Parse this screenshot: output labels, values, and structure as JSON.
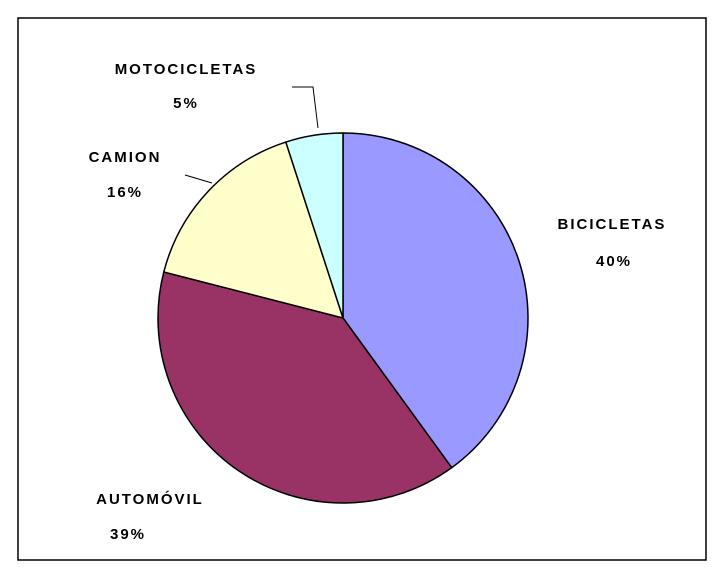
{
  "chart_data": {
    "type": "pie",
    "categories": [
      "BICICLETAS",
      "AUTOMÓVIL",
      "CAMION",
      "MOTOCICLETAS"
    ],
    "values": [
      40,
      39,
      16,
      5
    ],
    "value_labels": [
      "40%",
      "39%",
      "16%",
      "5%"
    ],
    "colors": [
      "#9999ff",
      "#993366",
      "#ffffcc",
      "#ccffff"
    ]
  }
}
